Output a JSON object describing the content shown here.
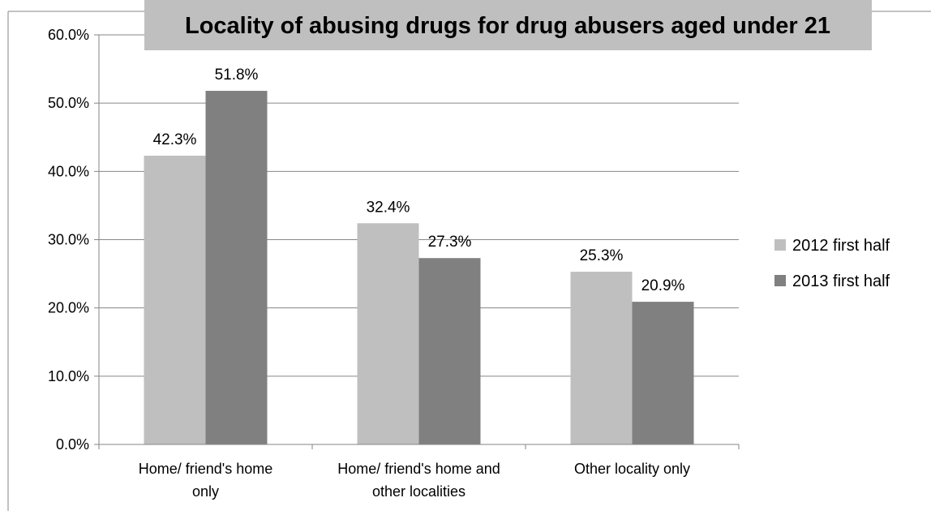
{
  "chart_data": {
    "type": "bar",
    "title": "Locality of abusing drugs for drug abusers aged under 21",
    "categories": [
      [
        "Home/ friend's home",
        "only"
      ],
      [
        "Home/ friend's home and",
        "other localities"
      ],
      [
        "Other locality only"
      ]
    ],
    "series": [
      {
        "name": "2012 first half",
        "values": [
          42.3,
          32.4,
          25.3
        ],
        "color": "#bfbfbf"
      },
      {
        "name": "2013 first half",
        "values": [
          51.8,
          27.3,
          20.9
        ],
        "color": "#808080"
      }
    ],
    "value_labels": [
      [
        "42.3%",
        "32.4%",
        "25.3%"
      ],
      [
        "51.8%",
        "27.3%",
        "20.9%"
      ]
    ],
    "ylim": [
      0,
      60
    ],
    "y_ticks": [
      0,
      10,
      20,
      30,
      40,
      50,
      60
    ],
    "y_tick_labels": [
      "0.0%",
      "10.0%",
      "20.0%",
      "30.0%",
      "40.0%",
      "50.0%",
      "60.0%"
    ],
    "grid": true,
    "legend_position": "right",
    "title_background": "#bfbfbf",
    "gridline_color": "#868686",
    "axis_color": "#868686"
  }
}
